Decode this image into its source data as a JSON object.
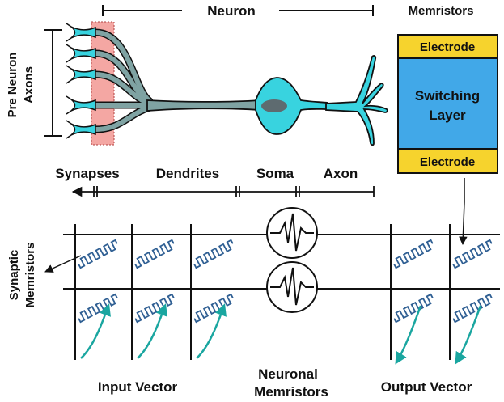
{
  "labels": {
    "neuron": "Neuron",
    "memristors": "Memristors",
    "pre_neuron_axons_line1": "Pre Neuron",
    "pre_neuron_axons_line2": "Axons",
    "synapses": "Synapses",
    "dendrites": "Dendrites",
    "soma": "Soma",
    "axon": "Axon",
    "synaptic_memristors_line1": "Synaptic",
    "synaptic_memristors_line2": "Memristors",
    "input_vector": "Input Vector",
    "neuronal_memristors_line1": "Neuronal",
    "neuronal_memristors_line2": "Memristors",
    "output_vector": "Output Vector"
  },
  "memristor_stack": {
    "top_electrode": "Electrode",
    "switching_line1": "Switching",
    "switching_line2": "Layer",
    "bottom_electrode": "Electrode"
  },
  "colors": {
    "neuron_fill": "#38d3df",
    "neuron_dendrite": "#7fa3a3",
    "nucleus": "#5e6b70",
    "synapse_highlight": "#f4a7a3",
    "electrode": "#f6d32d",
    "switching_layer": "#41a8e8",
    "memristor_symbol": "#2f5f93",
    "teal_arrow": "#1aa6a0"
  },
  "icons": {
    "neuronal_memristor": "oscillator-icon",
    "synaptic_memristor": "zigzag-resistor-icon"
  }
}
